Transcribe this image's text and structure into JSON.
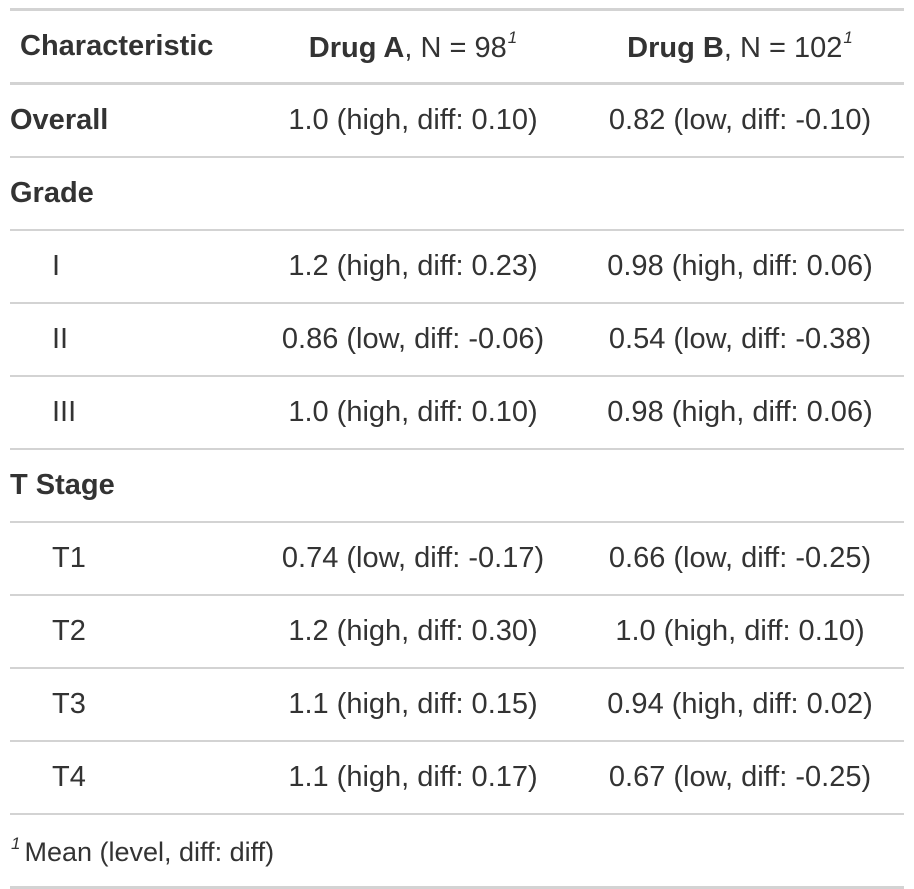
{
  "header": {
    "characteristic": "Characteristic",
    "drug_a_name": "Drug A",
    "drug_a_n": ", N = 98",
    "drug_b_name": "Drug B",
    "drug_b_n": ", N = 102",
    "footnote_mark": "1"
  },
  "rows": [
    {
      "label": "Overall",
      "a": "1.0 (high, diff: 0.10)",
      "b": "0.82 (low, diff: -0.10)"
    },
    {
      "label": "Grade",
      "a": "",
      "b": ""
    },
    {
      "label": "I",
      "a": "1.2 (high, diff: 0.23)",
      "b": "0.98 (high, diff: 0.06)"
    },
    {
      "label": "II",
      "a": "0.86 (low, diff: -0.06)",
      "b": "0.54 (low, diff: -0.38)"
    },
    {
      "label": "III",
      "a": "1.0 (high, diff: 0.10)",
      "b": "0.98 (high, diff: 0.06)"
    },
    {
      "label": "T Stage",
      "a": "",
      "b": ""
    },
    {
      "label": "T1",
      "a": "0.74 (low, diff: -0.17)",
      "b": "0.66 (low, diff: -0.25)"
    },
    {
      "label": "T2",
      "a": "1.2 (high, diff: 0.30)",
      "b": "1.0 (high, diff: 0.10)"
    },
    {
      "label": "T3",
      "a": "1.1 (high, diff: 0.15)",
      "b": "0.94 (high, diff: 0.02)"
    },
    {
      "label": "T4",
      "a": "1.1 (high, diff: 0.17)",
      "b": "0.67 (low, diff: -0.25)"
    }
  ],
  "footnote": {
    "mark": "1",
    "text": "Mean (level, diff: diff)"
  }
}
